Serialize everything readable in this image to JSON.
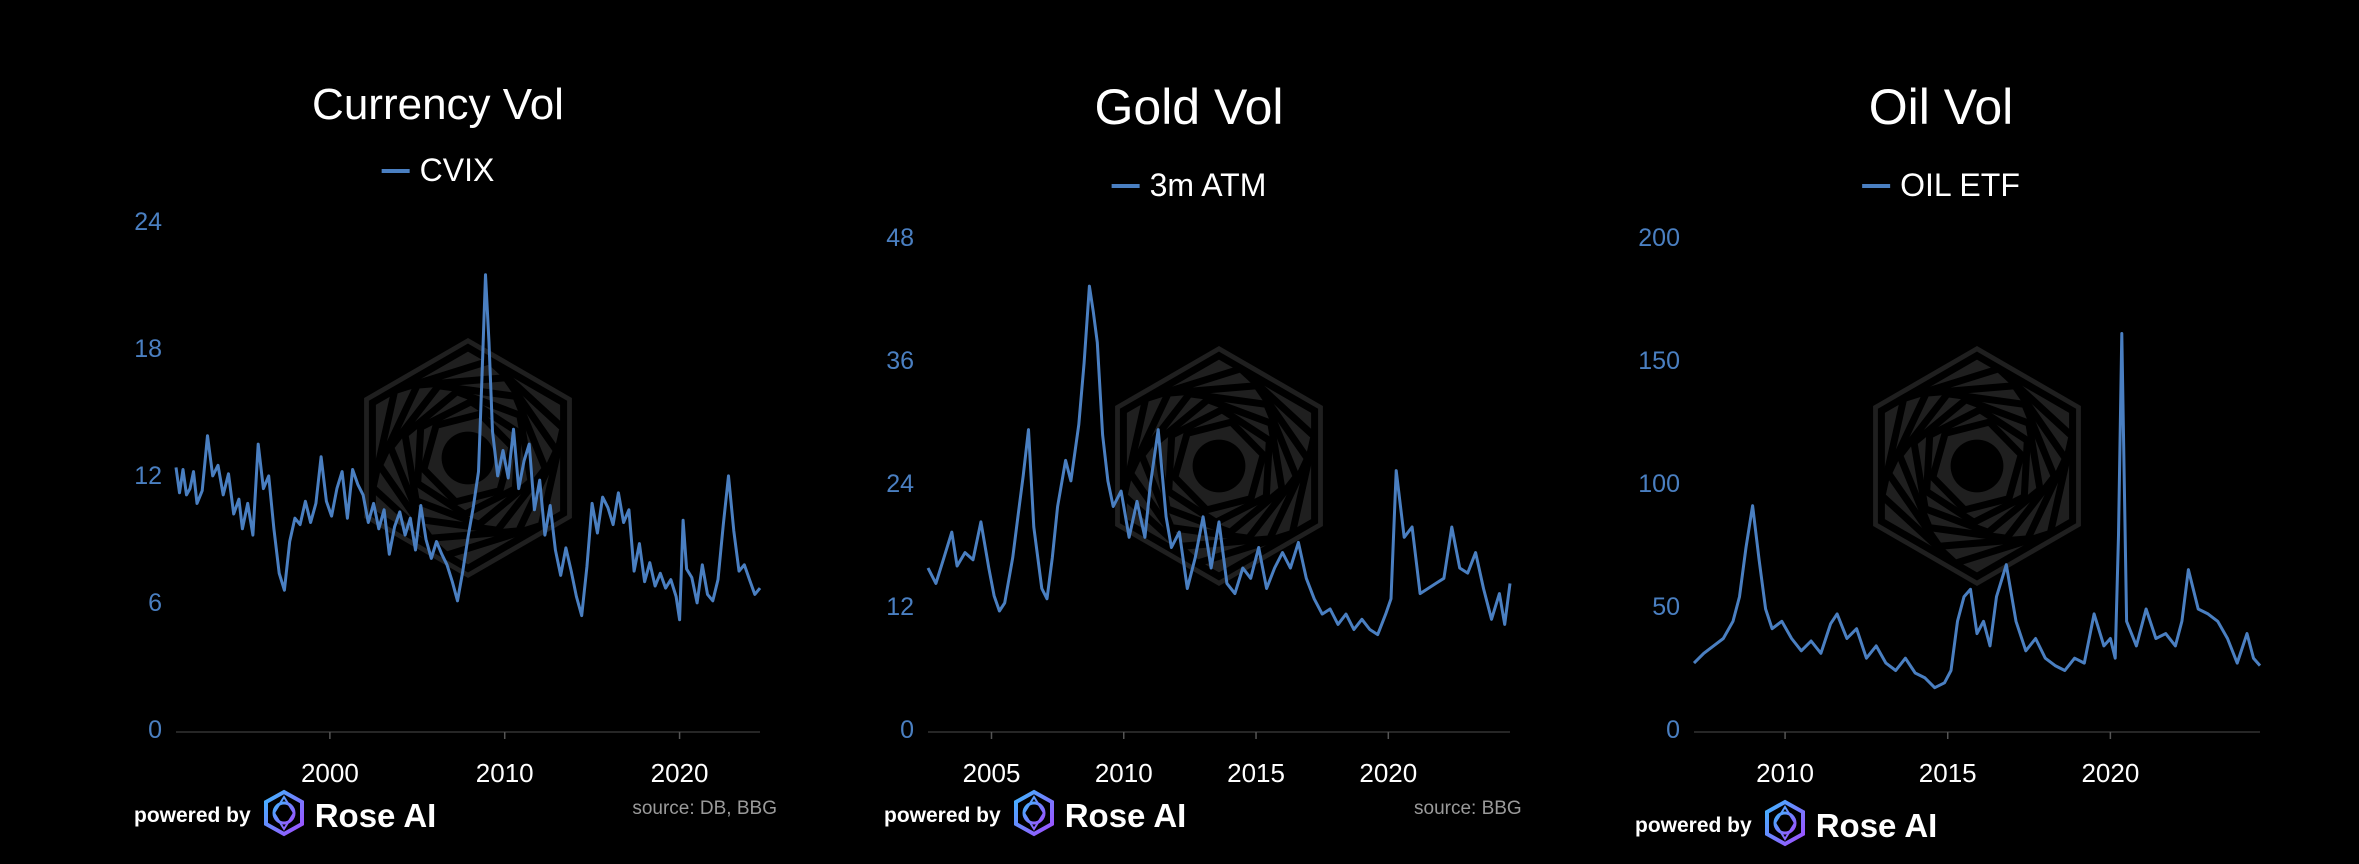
{
  "accent_color": "#4a7fc1",
  "axis_label_color": "#4a7fc1",
  "brand": {
    "powered_by": "powered by",
    "name": "Rose AI",
    "logo_icon": "rose-ai-logo-icon",
    "watermark_icon": "hexagon-watermark-icon"
  },
  "chart_data": [
    {
      "type": "line",
      "title": "Currency Vol",
      "xlabel": "",
      "ylabel": "",
      "source": "source: DB, BBG",
      "xlim": [
        1991.2,
        2024.6
      ],
      "ylim": [
        0,
        24
      ],
      "yticks": [
        0,
        6,
        12,
        18,
        24
      ],
      "xticks": [
        2000,
        2010,
        2020
      ],
      "grid": false,
      "legend_position": "top-center",
      "series": [
        {
          "name": "CVIX",
          "x": [
            1991.2,
            1991.4,
            1991.6,
            1991.8,
            1992.0,
            1992.2,
            1992.4,
            1992.7,
            1993.0,
            1993.3,
            1993.6,
            1993.9,
            1994.2,
            1994.5,
            1994.8,
            1995.0,
            1995.3,
            1995.6,
            1995.9,
            1996.2,
            1996.5,
            1996.8,
            1997.1,
            1997.4,
            1997.7,
            1998.0,
            1998.3,
            1998.6,
            1998.9,
            1999.2,
            1999.5,
            1999.8,
            2000.1,
            2000.4,
            2000.7,
            2001.0,
            2001.3,
            2001.6,
            2001.9,
            2002.2,
            2002.5,
            2002.8,
            2003.1,
            2003.4,
            2003.7,
            2004.0,
            2004.3,
            2004.6,
            2004.9,
            2005.2,
            2005.5,
            2005.8,
            2006.1,
            2006.4,
            2006.7,
            2007.0,
            2007.3,
            2007.6,
            2007.9,
            2008.2,
            2008.5,
            2008.7,
            2008.9,
            2009.1,
            2009.3,
            2009.6,
            2009.9,
            2010.2,
            2010.5,
            2010.8,
            2011.1,
            2011.4,
            2011.7,
            2012.0,
            2012.3,
            2012.6,
            2012.9,
            2013.2,
            2013.5,
            2013.8,
            2014.1,
            2014.4,
            2014.7,
            2015.0,
            2015.3,
            2015.6,
            2015.9,
            2016.2,
            2016.5,
            2016.8,
            2017.1,
            2017.4,
            2017.7,
            2018.0,
            2018.3,
            2018.6,
            2018.9,
            2019.2,
            2019.5,
            2019.8,
            2020.0,
            2020.2,
            2020.4,
            2020.7,
            2021.0,
            2021.3,
            2021.6,
            2021.9,
            2022.2,
            2022.5,
            2022.8,
            2023.1,
            2023.4,
            2023.7,
            2024.0,
            2024.3,
            2024.6
          ],
          "y": [
            12.5,
            11.3,
            12.4,
            11.2,
            11.5,
            12.3,
            10.8,
            11.4,
            14.0,
            12.1,
            12.6,
            11.2,
            12.2,
            10.3,
            11.0,
            9.6,
            10.8,
            9.3,
            13.6,
            11.5,
            12.1,
            9.6,
            7.5,
            6.7,
            9.0,
            10.1,
            9.8,
            10.9,
            9.9,
            10.8,
            13.0,
            10.9,
            10.2,
            11.5,
            12.3,
            10.1,
            12.4,
            11.7,
            11.2,
            9.9,
            10.8,
            9.6,
            10.5,
            8.4,
            9.7,
            10.4,
            9.3,
            10.1,
            8.6,
            10.7,
            9.1,
            8.2,
            9.0,
            8.4,
            7.9,
            7.1,
            6.2,
            7.6,
            9.2,
            10.6,
            12.3,
            16.8,
            21.6,
            18.4,
            14.2,
            12.1,
            13.3,
            12.0,
            14.3,
            11.5,
            12.8,
            13.6,
            10.5,
            11.9,
            9.3,
            10.7,
            8.6,
            7.4,
            8.7,
            7.6,
            6.4,
            5.5,
            7.8,
            10.8,
            9.4,
            11.1,
            10.6,
            9.8,
            11.3,
            9.9,
            10.5,
            7.6,
            8.9,
            7.1,
            8.0,
            6.9,
            7.5,
            6.8,
            7.2,
            6.4,
            5.3,
            10.0,
            7.7,
            7.3,
            6.1,
            7.9,
            6.5,
            6.2,
            7.2,
            9.8,
            12.1,
            9.5,
            7.6,
            7.9,
            7.2,
            6.5,
            6.8
          ]
        }
      ]
    },
    {
      "type": "line",
      "title": "Gold Vol",
      "xlabel": "",
      "ylabel": "",
      "source": "source: BBG",
      "xlim": [
        2002.6,
        2024.6
      ],
      "ylim": [
        0,
        48
      ],
      "yticks": [
        0,
        12,
        24,
        36,
        48
      ],
      "xticks": [
        2005,
        2010,
        2015,
        2020
      ],
      "grid": false,
      "legend_position": "top-center",
      "series": [
        {
          "name": "3m ATM",
          "x": [
            2002.6,
            2002.9,
            2003.2,
            2003.5,
            2003.7,
            2004.0,
            2004.3,
            2004.6,
            2004.9,
            2005.1,
            2005.3,
            2005.5,
            2005.8,
            2006.0,
            2006.2,
            2006.4,
            2006.6,
            2006.9,
            2007.1,
            2007.3,
            2007.5,
            2007.8,
            2008.0,
            2008.3,
            2008.5,
            2008.7,
            2008.85,
            2009.0,
            2009.2,
            2009.4,
            2009.6,
            2009.9,
            2010.2,
            2010.5,
            2010.8,
            2011.0,
            2011.3,
            2011.6,
            2011.8,
            2012.1,
            2012.4,
            2012.7,
            2013.0,
            2013.3,
            2013.6,
            2013.9,
            2014.2,
            2014.5,
            2014.8,
            2015.1,
            2015.4,
            2015.7,
            2016.0,
            2016.3,
            2016.6,
            2016.9,
            2017.2,
            2017.5,
            2017.8,
            2018.1,
            2018.4,
            2018.7,
            2019.0,
            2019.3,
            2019.6,
            2019.9,
            2020.1,
            2020.3,
            2020.6,
            2020.9,
            2021.2,
            2021.5,
            2021.8,
            2022.1,
            2022.4,
            2022.7,
            2023.0,
            2023.3,
            2023.6,
            2023.9,
            2024.2,
            2024.4,
            2024.6
          ],
          "y": [
            16.0,
            14.5,
            17.0,
            19.5,
            16.2,
            17.5,
            16.8,
            20.5,
            16.0,
            13.3,
            11.8,
            12.6,
            17.0,
            21.0,
            25.0,
            29.5,
            20.0,
            14.0,
            13.0,
            17.0,
            22.0,
            26.5,
            24.5,
            30.0,
            36.0,
            43.5,
            41.0,
            38.0,
            29.0,
            24.5,
            22.0,
            23.5,
            19.0,
            22.5,
            19.0,
            24.0,
            29.5,
            21.0,
            18.0,
            19.5,
            14.0,
            17.0,
            21.0,
            16.0,
            20.5,
            14.5,
            13.5,
            16.0,
            15.0,
            18.0,
            14.0,
            16.0,
            17.5,
            16.0,
            18.5,
            15.0,
            13.0,
            11.5,
            12.0,
            10.5,
            11.5,
            10.0,
            11.0,
            10.0,
            9.5,
            11.5,
            13.0,
            25.5,
            19.0,
            20.0,
            13.5,
            14.0,
            14.5,
            15.0,
            20.0,
            16.0,
            15.5,
            17.5,
            14.0,
            11.0,
            13.5,
            10.5,
            14.5
          ]
        }
      ]
    },
    {
      "type": "line",
      "title": "Oil Vol",
      "xlabel": "",
      "ylabel": "",
      "source": "",
      "xlim": [
        2007.2,
        2024.6
      ],
      "ylim": [
        0,
        200
      ],
      "yticks": [
        0,
        50,
        100,
        150,
        200
      ],
      "xticks": [
        2010,
        2015,
        2020
      ],
      "grid": false,
      "legend_position": "top-center",
      "series": [
        {
          "name": "OIL ETF",
          "x": [
            2007.2,
            2007.5,
            2007.8,
            2008.1,
            2008.4,
            2008.6,
            2008.8,
            2009.0,
            2009.2,
            2009.4,
            2009.6,
            2009.9,
            2010.2,
            2010.5,
            2010.8,
            2011.1,
            2011.4,
            2011.6,
            2011.9,
            2012.2,
            2012.5,
            2012.8,
            2013.1,
            2013.4,
            2013.7,
            2014.0,
            2014.3,
            2014.6,
            2014.9,
            2015.1,
            2015.3,
            2015.5,
            2015.7,
            2015.9,
            2016.1,
            2016.3,
            2016.5,
            2016.8,
            2017.1,
            2017.4,
            2017.7,
            2018.0,
            2018.3,
            2018.6,
            2018.9,
            2019.2,
            2019.5,
            2019.8,
            2020.0,
            2020.15,
            2020.25,
            2020.35,
            2020.5,
            2020.8,
            2021.1,
            2021.4,
            2021.7,
            2022.0,
            2022.2,
            2022.4,
            2022.7,
            2023.0,
            2023.3,
            2023.6,
            2023.9,
            2024.2,
            2024.4,
            2024.6
          ],
          "y": [
            28,
            32,
            35,
            38,
            45,
            55,
            75,
            92,
            70,
            50,
            42,
            45,
            38,
            33,
            37,
            32,
            44,
            48,
            38,
            42,
            30,
            35,
            28,
            25,
            30,
            24,
            22,
            18,
            20,
            25,
            45,
            55,
            58,
            40,
            45,
            35,
            55,
            68,
            45,
            33,
            38,
            30,
            27,
            25,
            30,
            28,
            48,
            35,
            38,
            30,
            80,
            162,
            45,
            35,
            50,
            38,
            40,
            35,
            45,
            66,
            50,
            48,
            45,
            38,
            28,
            40,
            30,
            27
          ]
        }
      ]
    }
  ]
}
